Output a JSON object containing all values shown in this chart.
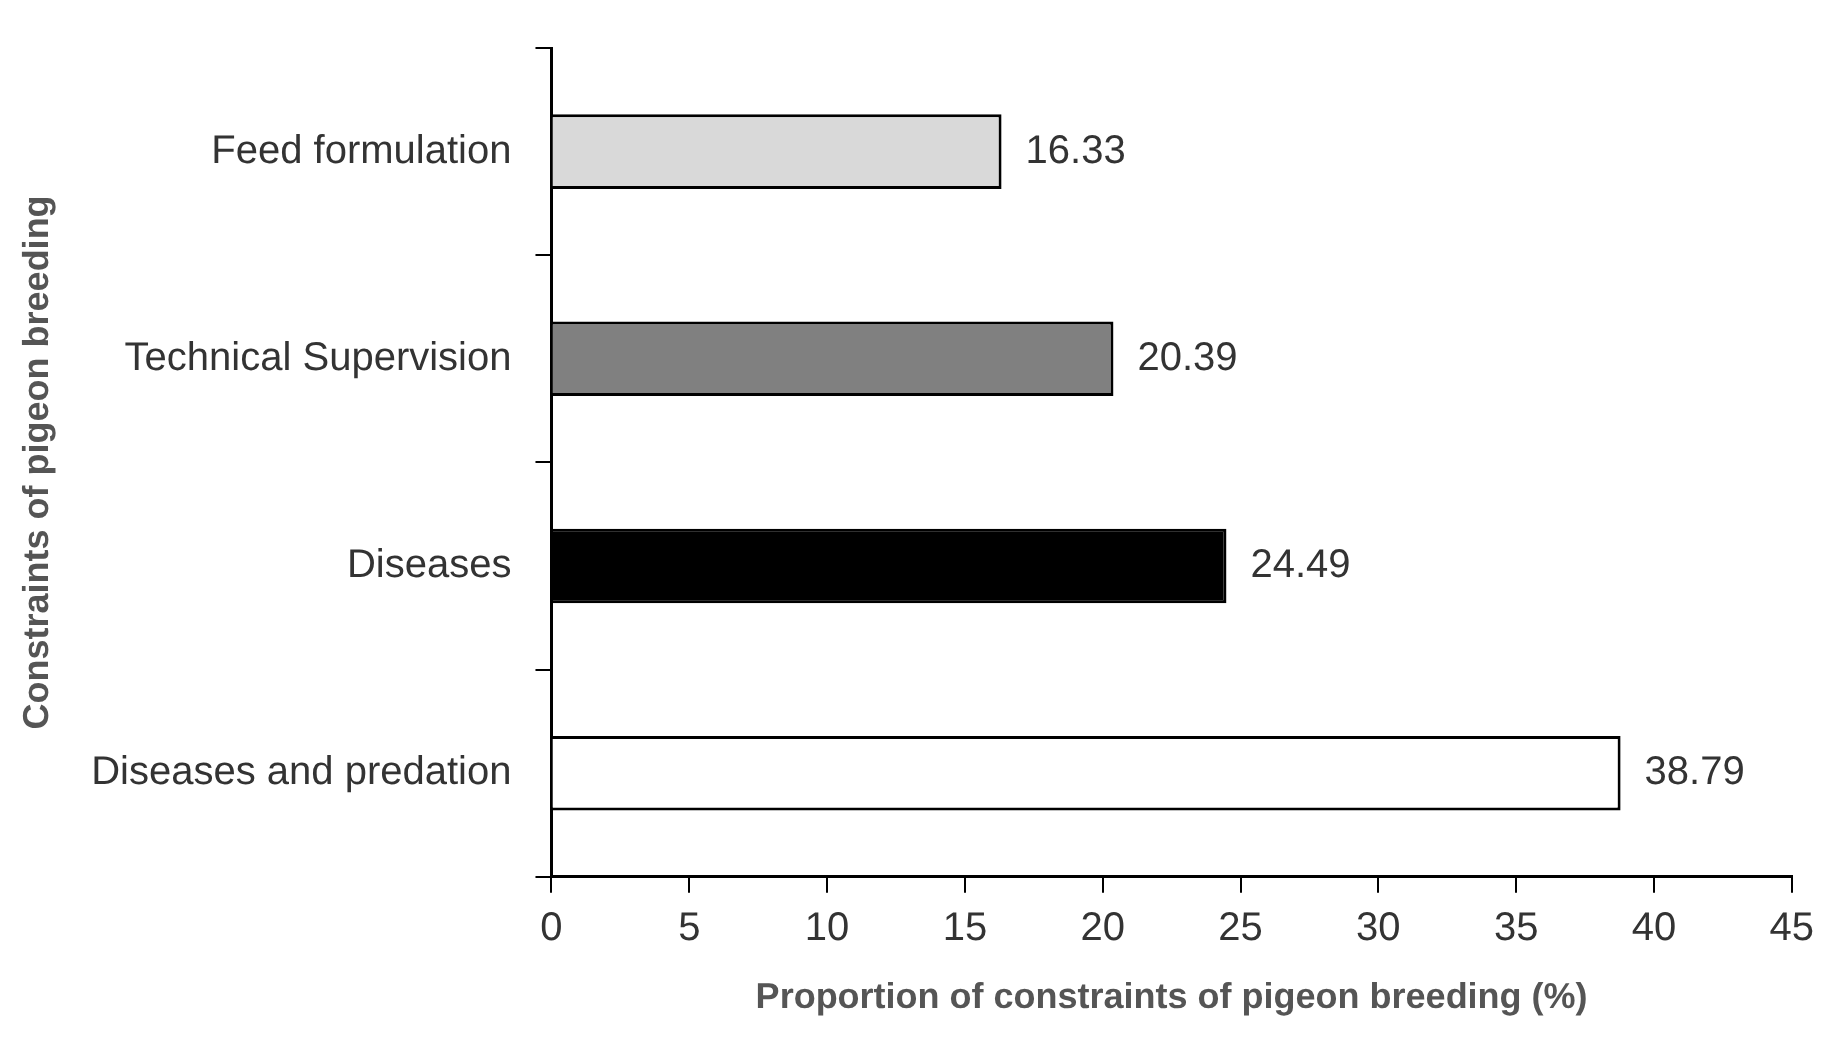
{
  "chart_data": {
    "type": "bar",
    "orientation": "horizontal",
    "xlabel": "Proportion of constraints of pigeon breeding (%)",
    "ylabel": "Constraints of pigeon breeding",
    "categories": [
      "Feed formulation",
      "Technical Supervision",
      "Diseases",
      "Diseases and predation"
    ],
    "values": [
      16.33,
      20.39,
      24.49,
      38.79
    ],
    "colors": [
      "#d9d9d9",
      "#808080",
      "#000000",
      "#ffffff"
    ],
    "xlim": [
      0,
      45
    ],
    "xticks": [
      0,
      5,
      10,
      15,
      20,
      25,
      30,
      35,
      40,
      45
    ],
    "data_labels": true,
    "grid": false,
    "legend": false
  }
}
